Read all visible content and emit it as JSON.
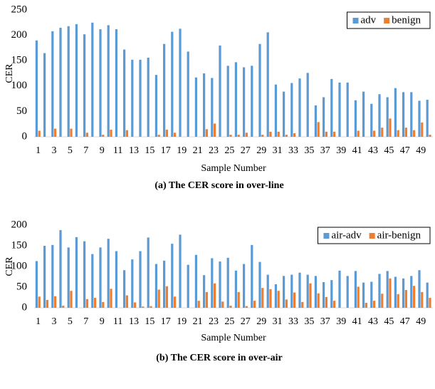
{
  "chart_data": [
    {
      "type": "bar",
      "caption": "(a) The CER score in over-line",
      "xlabel": "Sample Number",
      "ylabel": "CER",
      "categories": [
        "1",
        null,
        "3",
        null,
        "5",
        null,
        "7",
        null,
        "9",
        null,
        "11",
        null,
        "13",
        null,
        "15",
        null,
        "17",
        null,
        "19",
        null,
        "21",
        null,
        "23",
        null,
        "25",
        null,
        "27",
        null,
        "29",
        null,
        "31",
        null,
        "33",
        null,
        "35",
        null,
        "37",
        null,
        "39",
        null,
        "41",
        null,
        "43",
        null,
        "45",
        null,
        "47",
        null,
        "49",
        null
      ],
      "series": [
        {
          "name": "adv",
          "color": "#5b9bd5",
          "values": [
            190,
            165,
            208,
            215,
            218,
            222,
            202,
            225,
            212,
            220,
            212,
            172,
            152,
            152,
            156,
            122,
            183,
            207,
            213,
            168,
            117,
            125,
            116,
            180,
            140,
            147,
            137,
            140,
            183,
            206,
            103,
            89,
            106,
            115,
            126,
            62,
            78,
            114,
            107,
            107,
            72,
            89,
            65,
            84,
            78,
            96,
            88,
            88,
            71,
            73
          ]
        },
        {
          "name": "benign",
          "color": "#ed7d31",
          "values": [
            12,
            0,
            16,
            0,
            16,
            0,
            8,
            0,
            4,
            14,
            0,
            13,
            0,
            0,
            0,
            4,
            14,
            8,
            0,
            0,
            0,
            15,
            26,
            0,
            4,
            4,
            8,
            0,
            4,
            10,
            10,
            4,
            7,
            0,
            0,
            29,
            10,
            10,
            0,
            0,
            12,
            0,
            12,
            18,
            36,
            13,
            18,
            13,
            28,
            4
          ]
        }
      ],
      "ylim": [
        0,
        250
      ],
      "yticks": [
        0,
        50,
        100,
        150,
        200,
        250
      ],
      "grid": false,
      "legend": "top-right"
    },
    {
      "type": "bar",
      "caption": "(b) The CER score in over-air",
      "xlabel": "Sample Number",
      "ylabel": "CER",
      "categories": [
        "1",
        null,
        "3",
        null,
        "5",
        null,
        "7",
        null,
        "9",
        null,
        "11",
        null,
        "13",
        null,
        "15",
        null,
        "17",
        null,
        "19",
        null,
        "21",
        null,
        "23",
        null,
        "25",
        null,
        "27",
        null,
        "29",
        null,
        "31",
        null,
        "33",
        null,
        "35",
        null,
        "37",
        null,
        "39",
        null,
        "41",
        null,
        "43",
        null,
        "45",
        null,
        "47",
        null,
        "49",
        null
      ],
      "series": [
        {
          "name": "air-adv",
          "color": "#5b9bd5",
          "values": [
            113,
            150,
            152,
            188,
            146,
            171,
            161,
            130,
            146,
            167,
            137,
            91,
            117,
            137,
            170,
            106,
            114,
            155,
            177,
            104,
            128,
            79,
            120,
            112,
            121,
            90,
            106,
            152,
            111,
            80,
            57,
            77,
            80,
            85,
            80,
            77,
            62,
            67,
            90,
            77,
            89,
            61,
            63,
            82,
            89,
            75,
            71,
            77,
            91,
            61
          ]
        },
        {
          "name": "air-benign",
          "color": "#ed7d31",
          "values": [
            27,
            19,
            28,
            5,
            41,
            0,
            21,
            24,
            14,
            46,
            0,
            30,
            13,
            3,
            4,
            44,
            52,
            27,
            0,
            0,
            17,
            38,
            59,
            15,
            5,
            38,
            4,
            17,
            48,
            45,
            41,
            20,
            37,
            14,
            59,
            35,
            26,
            17,
            0,
            0,
            51,
            12,
            17,
            34,
            71,
            33,
            43,
            53,
            38,
            24
          ]
        }
      ],
      "ylim": [
        0,
        200
      ],
      "yticks": [
        0,
        50,
        100,
        150,
        200
      ],
      "grid": false,
      "legend": "top-right"
    }
  ]
}
